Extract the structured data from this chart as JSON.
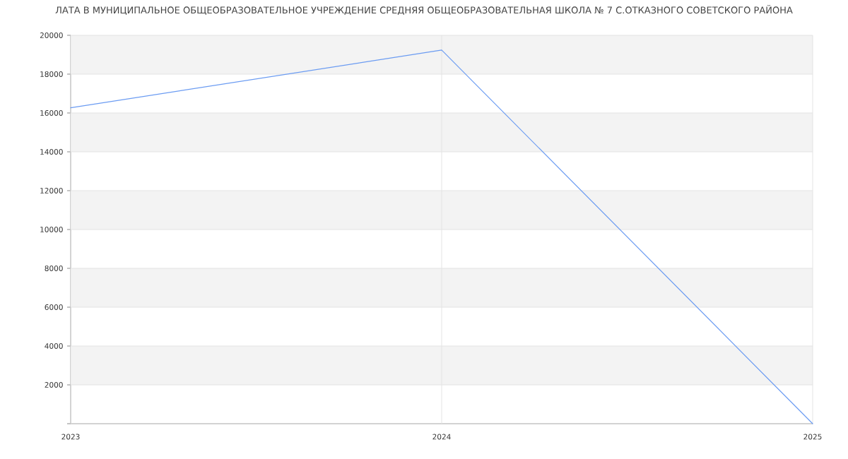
{
  "chart_data": {
    "type": "line",
    "title": "ЛАТА В МУНИЦИПАЛЬНОЕ ОБЩЕОБРАЗОВАТЕЛЬНОЕ УЧРЕЖДЕНИЕ СРЕДНЯЯ ОБЩЕОБРАЗОВАТЕЛЬНАЯ ШКОЛА № 7 С.ОТКАЗНОГО СОВЕТСКОГО РАЙОНА",
    "x": [
      2023,
      2024,
      2025
    ],
    "series": [
      {
        "color": "#6a9bf2",
        "values": [
          16270,
          19240,
          0
        ]
      }
    ],
    "xlim": [
      2023,
      2025
    ],
    "xticks": [
      2023,
      2024,
      2025
    ],
    "ylim": [
      0,
      20000
    ],
    "yticks": [
      {
        "value": 0,
        "label": null
      },
      2000,
      4000,
      6000,
      8000,
      10000,
      12000,
      14000,
      16000,
      18000,
      20000
    ],
    "grid": true
  }
}
